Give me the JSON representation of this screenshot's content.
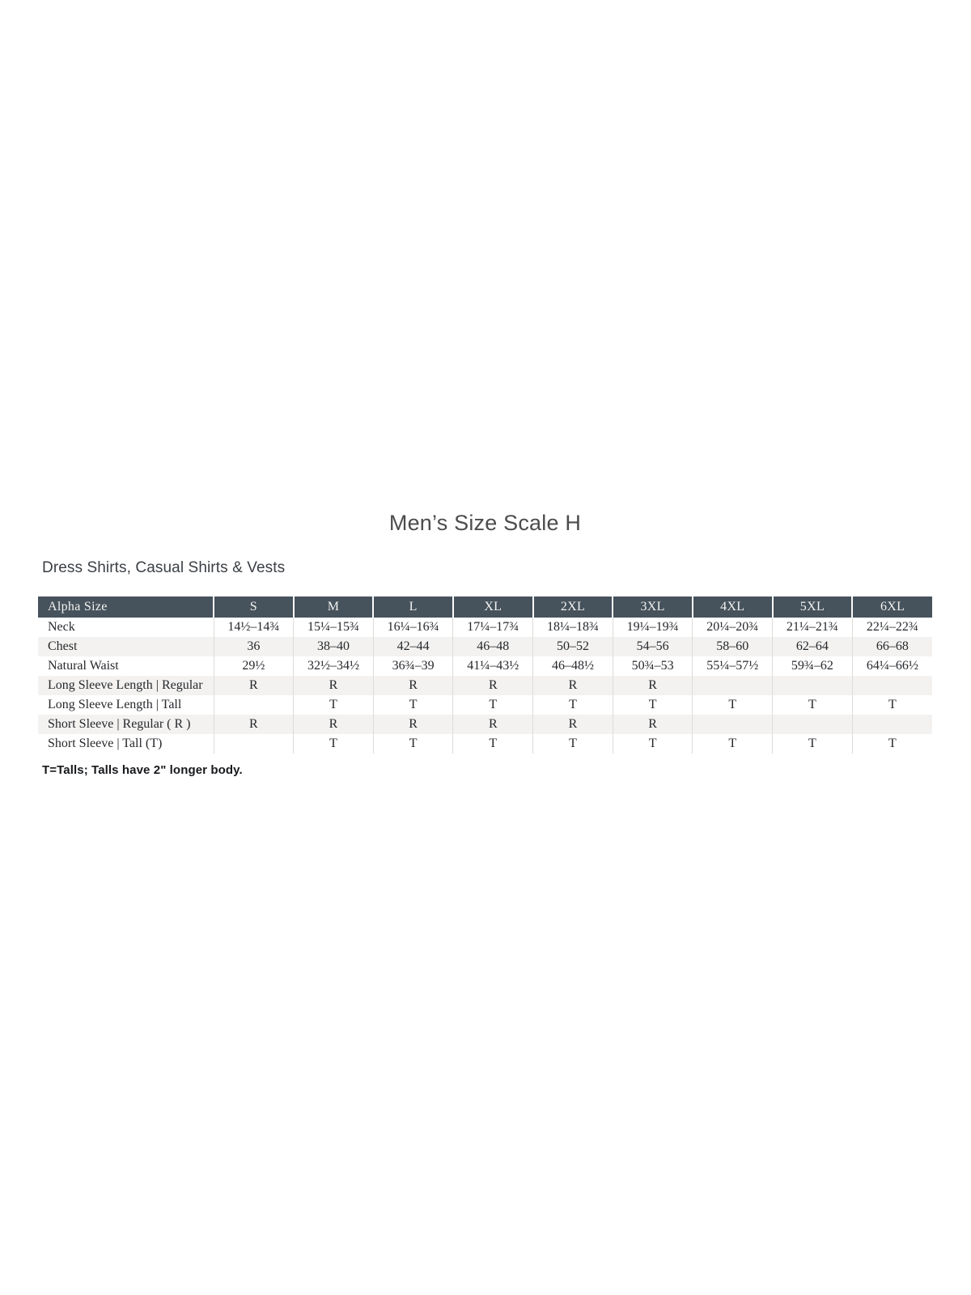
{
  "page": {
    "title": "Men’s Size Scale H",
    "section_heading": "Dress Shirts, Casual Shirts & Vests",
    "footnote": "T=Talls; Talls have 2\" longer body."
  },
  "table": {
    "columns": [
      "Alpha Size",
      "S",
      "M",
      "L",
      "XL",
      "2XL",
      "3XL",
      "4XL",
      "5XL",
      "6XL"
    ],
    "rows": [
      {
        "label": "Neck",
        "values": [
          "14½–14¾",
          "15¼–15¾",
          "16¼–16¾",
          "17¼–17¾",
          "18¼–18¾",
          "19¼–19¾",
          "20¼–20¾",
          "21¼–21¾",
          "22¼–22¾"
        ]
      },
      {
        "label": "Chest",
        "values": [
          "36",
          "38–40",
          "42–44",
          "46–48",
          "50–52",
          "54–56",
          "58–60",
          "62–64",
          "66–68"
        ]
      },
      {
        "label": "Natural Waist",
        "values": [
          "29½",
          "32½–34½",
          "36¾–39",
          "41¼–43½",
          "46–48½",
          "50¾–53",
          "55¼–57½",
          "59¾–62",
          "64¼–66½"
        ]
      },
      {
        "label": "Long Sleeve Length | Regular",
        "values": [
          "R",
          "R",
          "R",
          "R",
          "R",
          "R",
          "",
          "",
          ""
        ]
      },
      {
        "label": "Long Sleeve Length | Tall",
        "values": [
          "",
          "T",
          "T",
          "T",
          "T",
          "T",
          "T",
          "T",
          "T"
        ]
      },
      {
        "label": "Short Sleeve | Regular ( R )",
        "values": [
          "R",
          "R",
          "R",
          "R",
          "R",
          "R",
          "",
          "",
          ""
        ]
      },
      {
        "label": "Short Sleeve | Tall (T)",
        "values": [
          "",
          "T",
          "T",
          "T",
          "T",
          "T",
          "T",
          "T",
          "T"
        ]
      }
    ]
  },
  "colors": {
    "header_bg": "#46525c",
    "header_text": "#f4f4f2",
    "row_alt_bg": "#f3f2f0",
    "body_text": "#26282c",
    "cell_border": "#dcdcd9"
  }
}
